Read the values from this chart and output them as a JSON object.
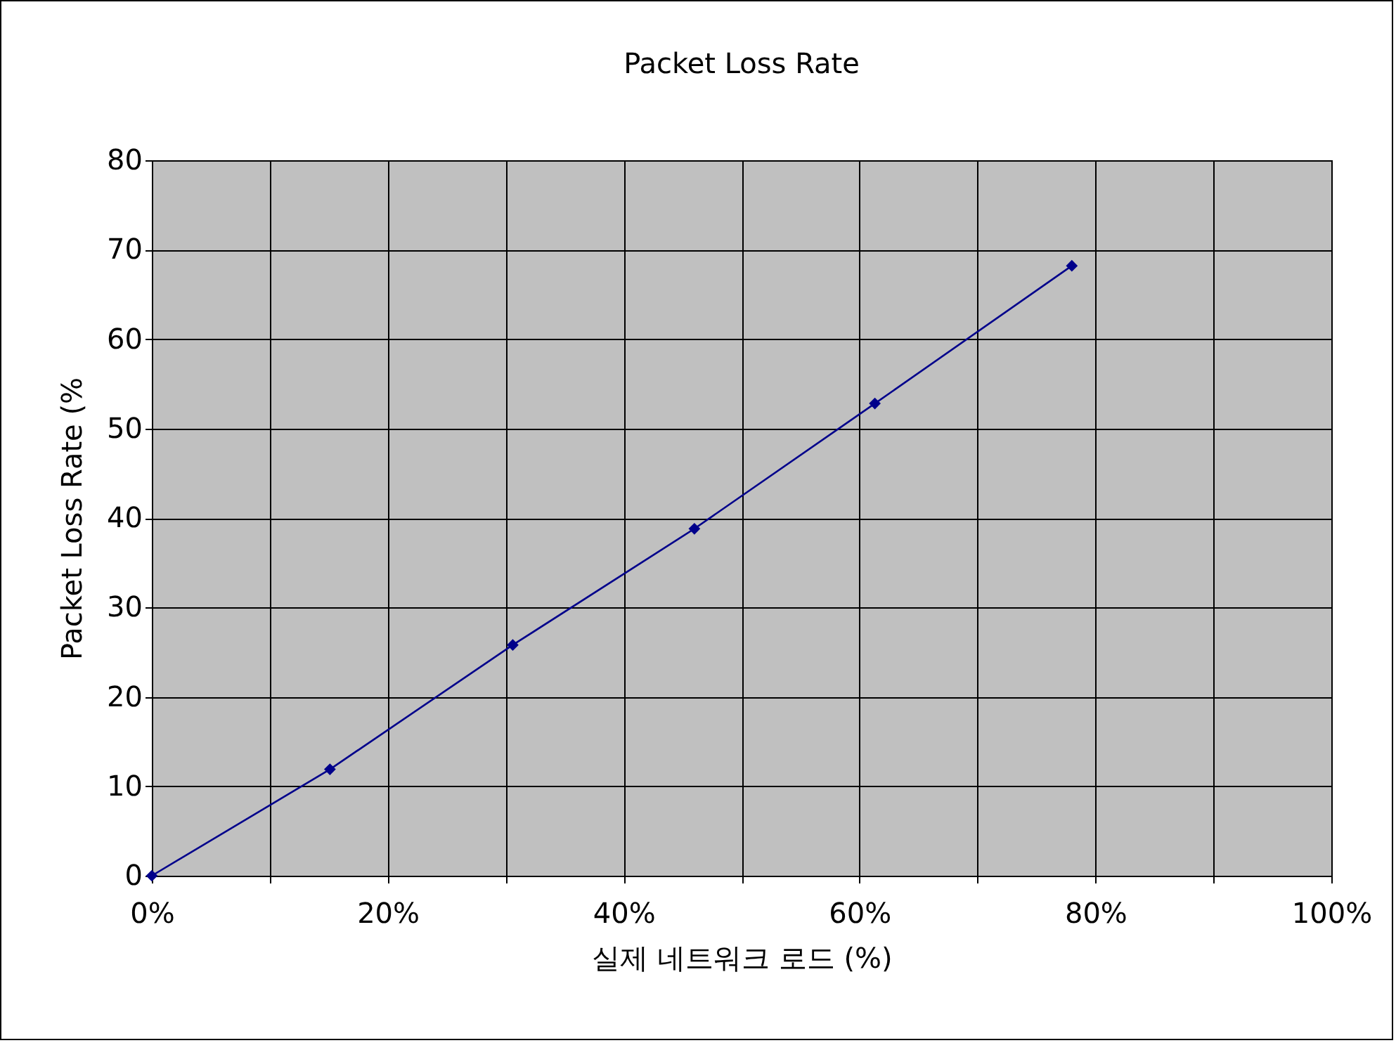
{
  "chart_data": {
    "type": "line",
    "title": "Packet Loss Rate",
    "xlabel": "실제 네트워크 로드 (%)",
    "ylabel": "Packet Loss Rate (%",
    "x": [
      0,
      15.1,
      30.6,
      46,
      61.3,
      78
    ],
    "series": [
      {
        "color": "#00008b",
        "values": [
          0,
          11.9,
          25.8,
          38.8,
          52.8,
          68.2
        ]
      }
    ],
    "xlim": [
      0,
      100
    ],
    "xticks": [
      {
        "value": 0,
        "label": "0%"
      },
      {
        "value": 10,
        "label": null
      },
      {
        "value": 20,
        "label": "20%"
      },
      {
        "value": 30,
        "label": null
      },
      {
        "value": 40,
        "label": "40%"
      },
      {
        "value": 50,
        "label": null
      },
      {
        "value": 60,
        "label": "60%"
      },
      {
        "value": 70,
        "label": null
      },
      {
        "value": 80,
        "label": "80%"
      },
      {
        "value": 90,
        "label": null
      },
      {
        "value": 100,
        "label": "100%"
      }
    ],
    "ylim": [
      0,
      80
    ],
    "yticks": [
      0,
      10,
      20,
      30,
      40,
      50,
      60,
      70,
      80
    ],
    "grid": true,
    "marker": "diamond",
    "line_style": "solid"
  }
}
